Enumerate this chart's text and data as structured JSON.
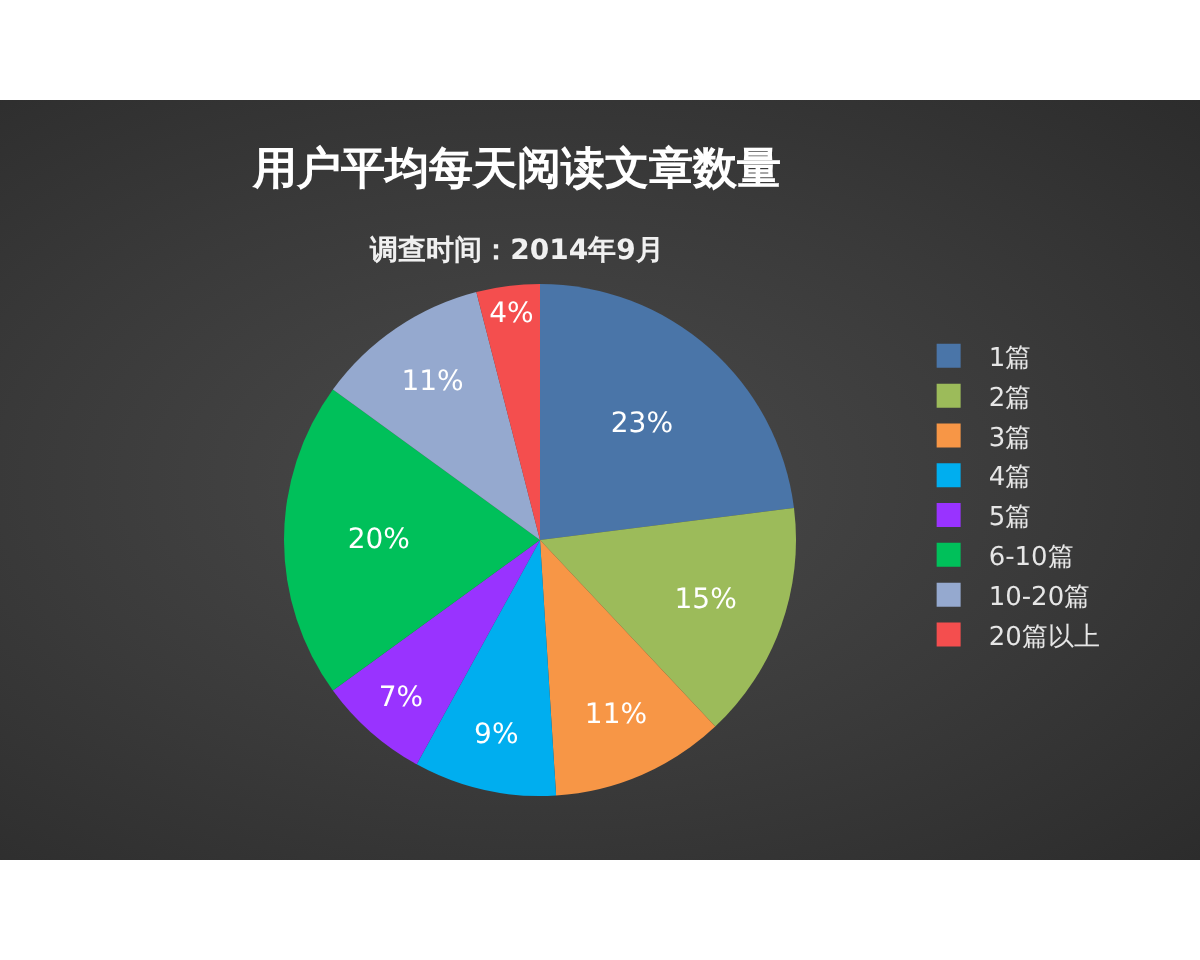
{
  "chart_data": {
    "type": "pie",
    "title": "用户平均每天阅读文章数量",
    "subtitle": "调查时间：2014年9月",
    "categories": [
      "1篇",
      "2篇",
      "3篇",
      "4篇",
      "5篇",
      "6-10篇",
      "10-20篇",
      "20篇以上"
    ],
    "values": [
      23,
      15,
      11,
      9,
      7,
      20,
      11,
      4
    ],
    "colors": [
      "#4a75a8",
      "#9cbb5a",
      "#f79646",
      "#00aeef",
      "#9933ff",
      "#00c05a",
      "#95a9cf",
      "#f44e4e"
    ],
    "value_labels": [
      "23%",
      "15%",
      "11%",
      "9%",
      "7%",
      "20%",
      "11%",
      "4%"
    ],
    "legend": "right"
  }
}
